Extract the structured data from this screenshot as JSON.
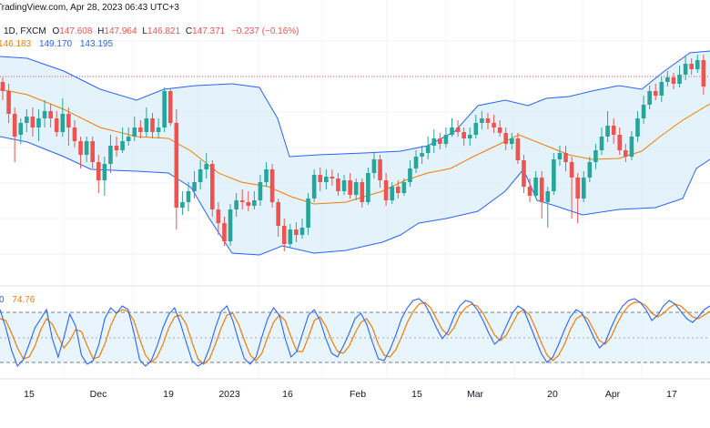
{
  "header": {
    "source_line": "TradingView.com, Apr 28, 2023 06:43 UTC+3",
    "timeframe": "1D, FXCM",
    "ohlc": {
      "o_label": "O",
      "o": "147.608",
      "h_label": "H",
      "h": "147.964",
      "l_label": "L",
      "l": "146.821",
      "c_label": "C",
      "c": "147.371",
      "change": "−0.237 (−0.16%)"
    },
    "bb_values": {
      "basis": "146.183",
      "upper": "149.170",
      "lower": "143.195"
    }
  },
  "oscillator": {
    "k_value": "0",
    "d_value": "74.76"
  },
  "colors": {
    "up": "#26a69a",
    "down": "#ef5350",
    "band_line": "#2962ff",
    "basis": "#f57c00",
    "band_fill": "#dbeefa",
    "stoch_fill": "#e3f2fd",
    "stoch_k": "#2962ff",
    "stoch_d": "#f57c00"
  },
  "chart_data": {
    "type": "candlestick",
    "indicators": [
      "Bollinger Bands",
      "Stochastic"
    ],
    "grid": true,
    "x_tick_labels": [
      "15",
      "Dec",
      "19",
      "2023",
      "16",
      "Feb",
      "15",
      "Mar",
      "20",
      "Apr",
      "17"
    ],
    "stochastic_levels": [
      80,
      50,
      20
    ]
  }
}
